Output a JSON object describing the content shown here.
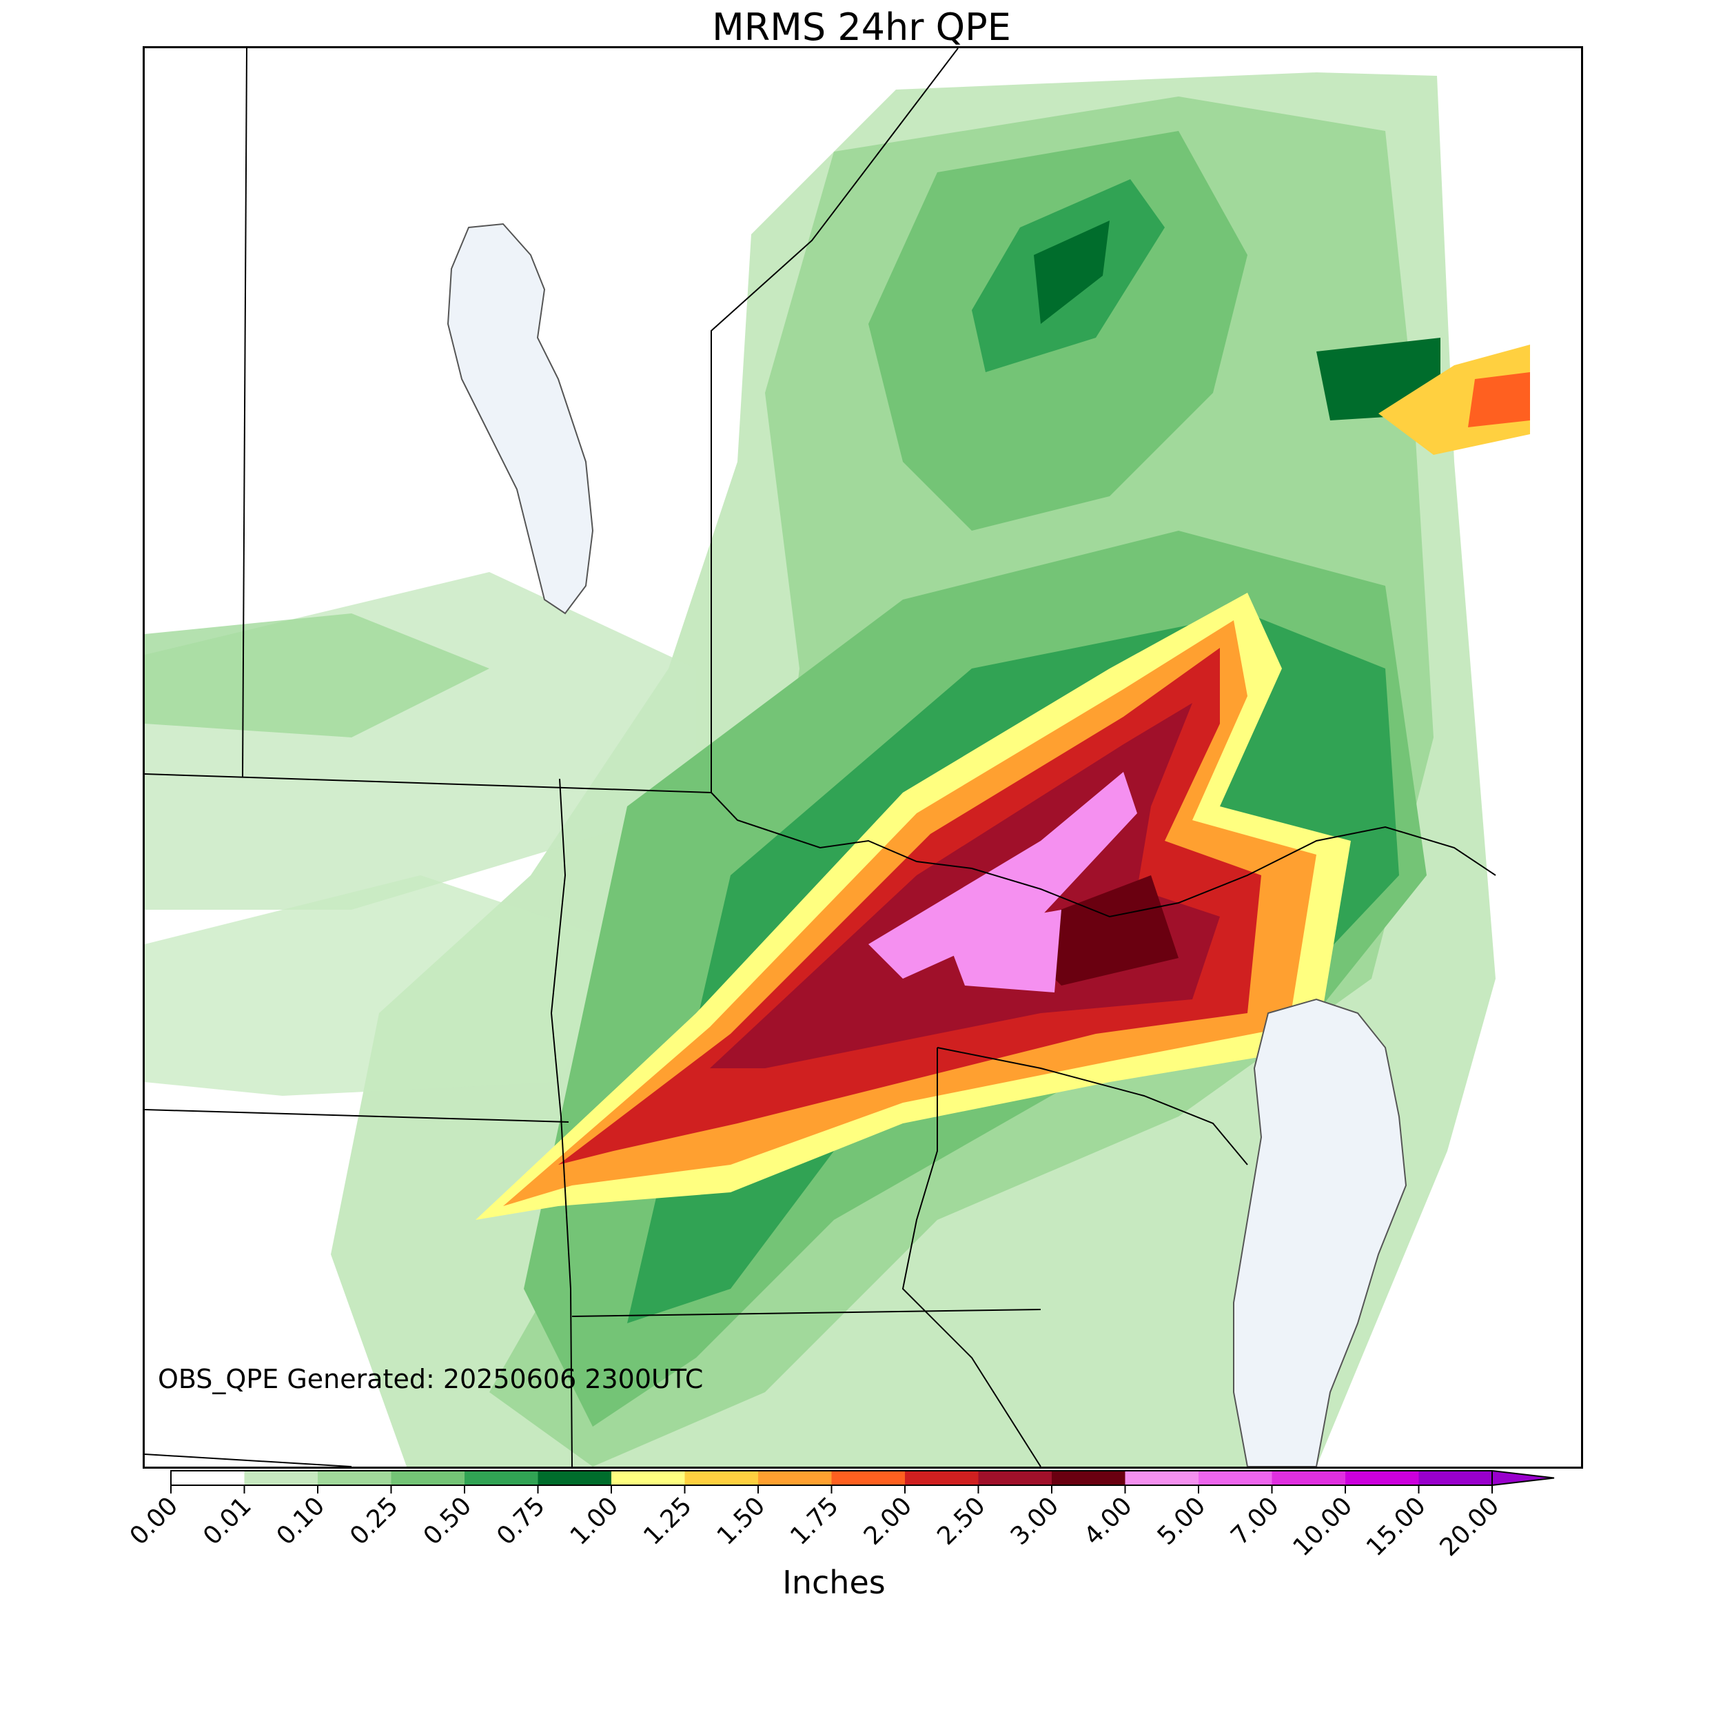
{
  "title": "MRMS 24hr QPE",
  "footnote": "OBS_QPE Generated: 20250606 2300UTC",
  "colorbar": {
    "units_label": "Inches",
    "tick_labels": [
      "0.00",
      "0.01",
      "0.10",
      "0.25",
      "0.50",
      "0.75",
      "1.00",
      "1.25",
      "1.50",
      "1.75",
      "2.00",
      "2.50",
      "3.00",
      "4.00",
      "5.00",
      "7.00",
      "10.00",
      "15.00",
      "20.00"
    ],
    "colors": [
      "#ffffff",
      "#c7e9c0",
      "#a1d99b",
      "#74c476",
      "#31a354",
      "#006d2c",
      "#ffff80",
      "#ffd040",
      "#ffa030",
      "#ff6020",
      "#d02020",
      "#a0102a",
      "#6a0010",
      "#f590f0",
      "#ee66ee",
      "#e030e0",
      "#cc00dd",
      "#9900cc"
    ],
    "extend": "max"
  },
  "map": {
    "colors": {
      "water": "#eef3f9",
      "boundary": "#000000",
      "coast": "#555555",
      "nodata": "#ffffff"
    },
    "features": [
      "state-borders",
      "province-borders",
      "lake-superior",
      "lake-michigan",
      "lake-winnipeg"
    ]
  }
}
